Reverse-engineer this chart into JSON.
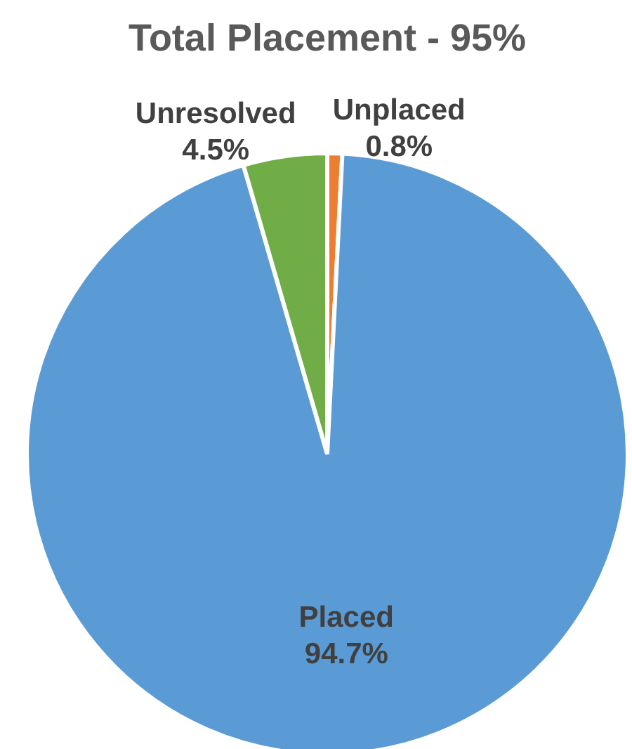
{
  "chart_data": {
    "type": "pie",
    "title": "Total Placement -  95%",
    "categories": [
      "Unplaced",
      "Placed",
      "Unresolved"
    ],
    "values": [
      0.8,
      94.7,
      4.5
    ],
    "colors": [
      "#ed7d31",
      "#5b9bd5",
      "#70ad47"
    ],
    "value_labels": [
      "0.8%",
      "94.7%",
      "4.5%"
    ],
    "legend": false
  }
}
